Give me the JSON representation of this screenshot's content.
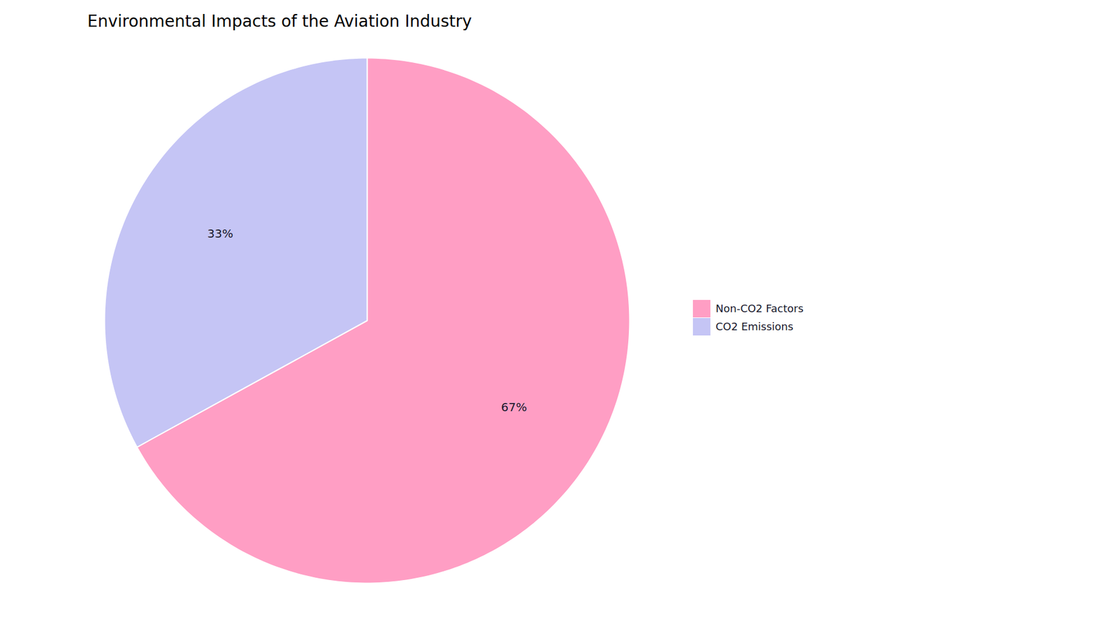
{
  "chart_data": {
    "type": "pie",
    "title": "Environmental Impacts of the Aviation Industry",
    "categories": [
      "Non-CO2 Factors",
      "CO2 Emissions"
    ],
    "values": [
      67,
      33
    ],
    "value_labels": [
      "67%",
      "33%"
    ],
    "colors": [
      "#FF9EC4",
      "#C5C5F5"
    ],
    "data_labels": true,
    "legend": "right"
  }
}
